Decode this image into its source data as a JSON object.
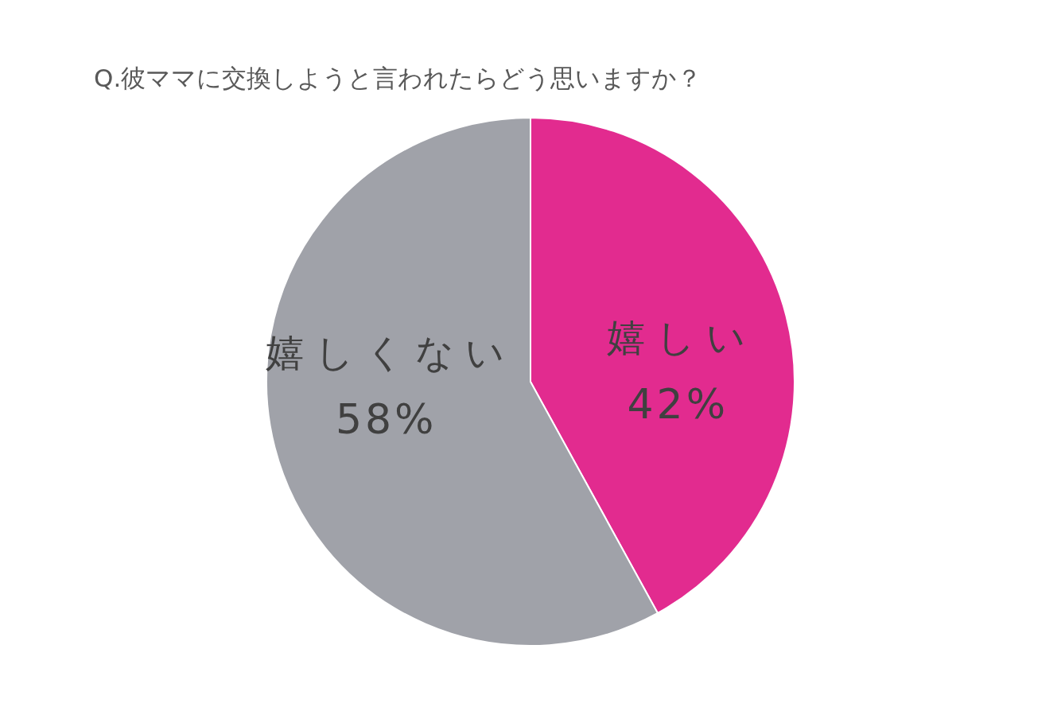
{
  "chart_data": {
    "type": "pie",
    "title": "Q.彼ママに交換しようと言われたらどう思いますか？",
    "categories": [
      "嬉しい",
      "嬉しくない"
    ],
    "values": [
      42,
      58
    ],
    "colors": [
      "#e22b8f",
      "#a0a2a9"
    ],
    "value_labels": [
      "42%",
      "58%"
    ]
  }
}
